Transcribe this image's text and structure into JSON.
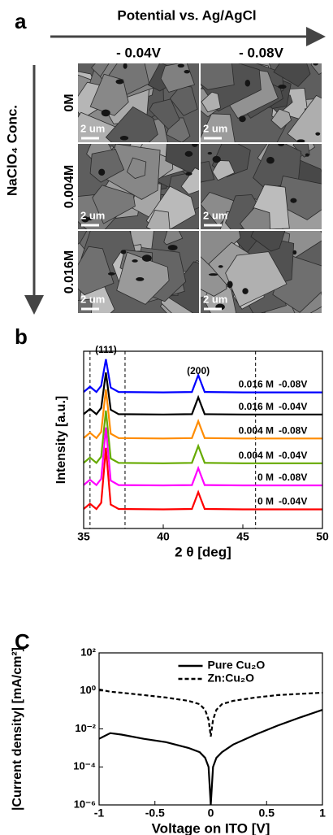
{
  "panel_a": {
    "label": "a",
    "x_title": "Potential vs. Ag/AgCl",
    "y_title": "NaClO₄ Conc.",
    "columns": [
      "- 0.04V",
      "- 0.08V"
    ],
    "rows": [
      "0M",
      "0.004M",
      "0.016M"
    ],
    "scale_labels": [
      [
        "2 um",
        "2 um"
      ],
      [
        "2 um",
        "2 um"
      ],
      [
        "2 um",
        "2 um"
      ]
    ]
  },
  "chart_data": [
    {
      "type": "line",
      "panel_label": "b",
      "x_label": "2 θ [deg]",
      "y_label": "Intensity [a.u.]",
      "x": [
        35,
        35.4,
        35.8,
        36.1,
        36.4,
        36.7,
        37.2,
        40,
        41.8,
        42.2,
        42.6,
        45,
        50
      ],
      "xlim": [
        35,
        50
      ],
      "xticks": [
        35,
        40,
        45,
        50
      ],
      "ylim": [
        0,
        10
      ],
      "reference_lines_x": [
        35.4,
        37.6,
        45.8
      ],
      "annotations": [
        {
          "text": "(111)",
          "x": 36.4,
          "y": 10.05
        },
        {
          "text": "(200)",
          "x": 42.2,
          "y": 8.85
        }
      ],
      "series": [
        {
          "concentration": "0 M",
          "potential": "-0.04V",
          "color": "#ff0000",
          "values": [
            1.1,
            1.4,
            1.1,
            1.45,
            4.55,
            1.35,
            1.1,
            1.08,
            1.1,
            2.05,
            1.1,
            1.08,
            1.08
          ]
        },
        {
          "concentration": "0 M",
          "potential": "-0.08V",
          "color": "#ff00ff",
          "values": [
            2.45,
            2.75,
            2.45,
            2.8,
            5.7,
            2.7,
            2.45,
            2.43,
            2.45,
            3.4,
            2.45,
            2.43,
            2.43
          ]
        },
        {
          "concentration": "0.004 M",
          "potential": "-0.04V",
          "color": "#66aa00",
          "values": [
            3.7,
            4.0,
            3.7,
            4.05,
            6.65,
            3.95,
            3.7,
            3.68,
            3.7,
            4.65,
            3.7,
            3.68,
            3.68
          ]
        },
        {
          "concentration": "0.004 M",
          "potential": "-0.08V",
          "color": "#ff8c00",
          "values": [
            5.1,
            5.4,
            5.1,
            5.45,
            7.85,
            5.35,
            5.1,
            5.08,
            5.1,
            6.05,
            5.1,
            5.08,
            5.08
          ]
        },
        {
          "concentration": "0.016 M",
          "potential": "-0.04V",
          "color": "#000000",
          "values": [
            6.45,
            6.75,
            6.45,
            6.8,
            8.8,
            6.7,
            6.45,
            6.43,
            6.45,
            7.4,
            6.45,
            6.43,
            6.43
          ]
        },
        {
          "concentration": "0.016 M",
          "potential": "-0.08V",
          "color": "#0000ff",
          "values": [
            7.7,
            8.0,
            7.7,
            8.05,
            9.55,
            7.95,
            7.7,
            7.68,
            7.7,
            8.65,
            7.7,
            7.68,
            7.68
          ]
        }
      ]
    },
    {
      "type": "line",
      "panel_label": "C",
      "x_label": "Voltage on ITO [V]",
      "y_label": "|Current density| [mA/cm²]",
      "log_y": true,
      "xlim": [
        -1,
        1
      ],
      "xticks": [
        -1,
        -0.5,
        0,
        0.5,
        1
      ],
      "ylim": [
        1e-06,
        100
      ],
      "yticks": [
        {
          "value": 100,
          "label": "10²"
        },
        {
          "value": 1,
          "label": "10⁰"
        },
        {
          "value": 0.01,
          "label": "10⁻²"
        },
        {
          "value": 0.0001,
          "label": "10⁻⁴"
        },
        {
          "value": 1e-06,
          "label": "10⁻⁶"
        }
      ],
      "legend": "top",
      "x": [
        -1,
        -0.9,
        -0.8,
        -0.6,
        -0.4,
        -0.2,
        -0.1,
        -0.05,
        -0.02,
        0,
        0.02,
        0.05,
        0.1,
        0.2,
        0.4,
        0.6,
        0.8,
        1
      ],
      "series": [
        {
          "name": "Pure Cu₂O",
          "color": "#000000",
          "dash": false,
          "values": [
            0.003,
            0.006,
            0.005,
            0.003,
            0.002,
            0.001,
            0.0006,
            0.0003,
            0.0001,
            1e-06,
            0.0001,
            0.0003,
            0.0006,
            0.0015,
            0.005,
            0.015,
            0.04,
            0.1
          ]
        },
        {
          "name": "Zn:Cu₂O",
          "color": "#000000",
          "dash": true,
          "values": [
            1.2,
            0.9,
            0.8,
            0.6,
            0.45,
            0.3,
            0.2,
            0.1,
            0.03,
            0.004,
            0.03,
            0.1,
            0.2,
            0.3,
            0.45,
            0.6,
            0.7,
            0.8
          ]
        }
      ]
    }
  ]
}
